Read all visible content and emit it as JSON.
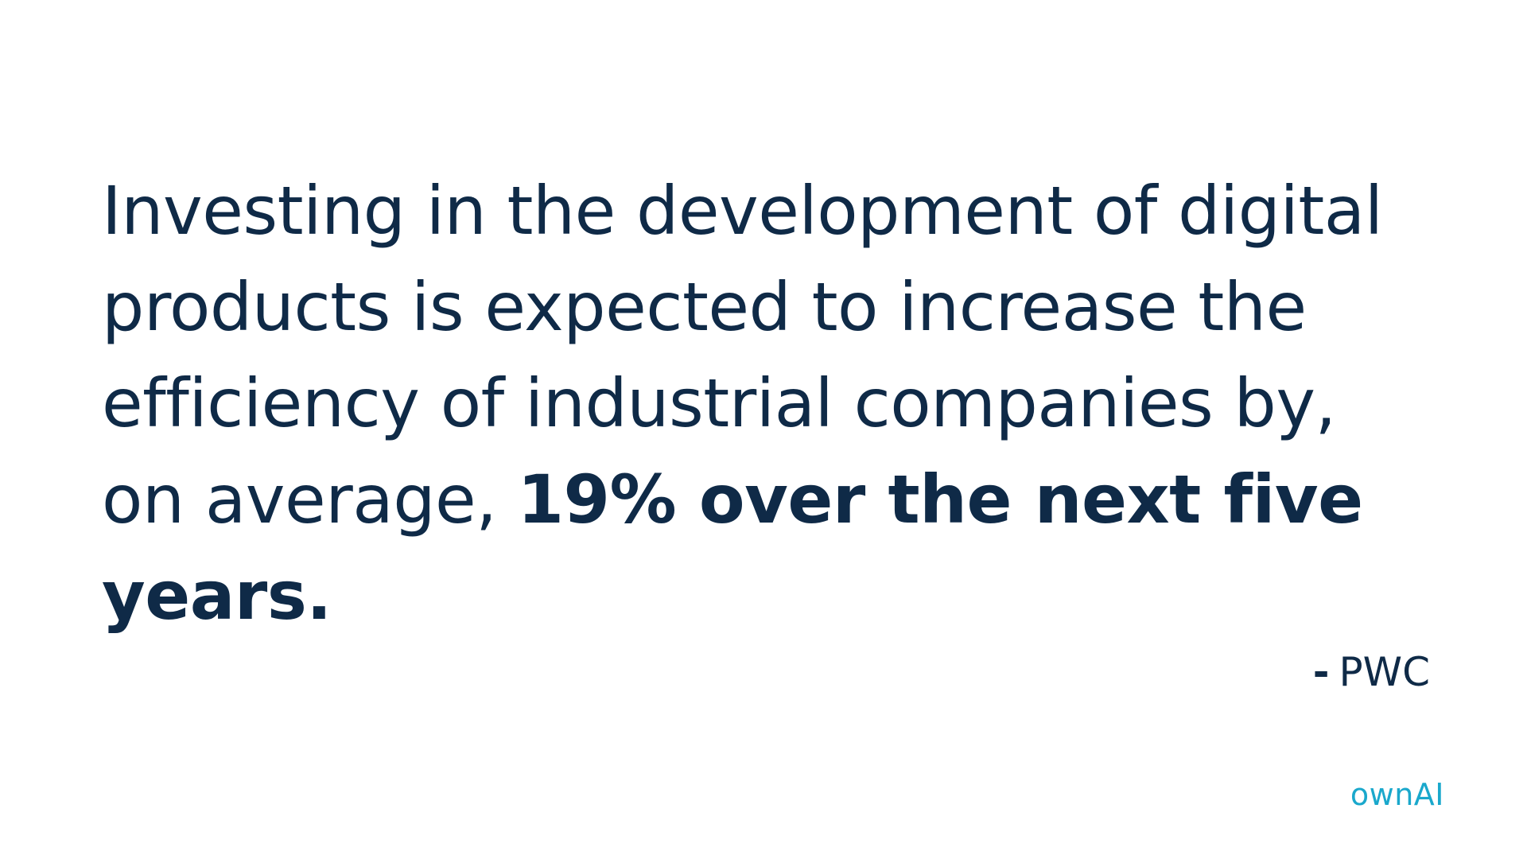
{
  "quote": {
    "line1": "Investing in the development of digital",
    "line2": "products is expected to increase the",
    "line3": "efficiency of industrial companies by,",
    "line4_plain": "on average, ",
    "line4_bold": "19% over the next five",
    "line5_bold": "years."
  },
  "attribution": {
    "dash": "-",
    "source": "PWC"
  },
  "logo": {
    "part1": "own",
    "part2": "AI"
  },
  "colors": {
    "text": "#0f2a47",
    "accent": "#1aa8cc",
    "background": "#ffffff"
  }
}
